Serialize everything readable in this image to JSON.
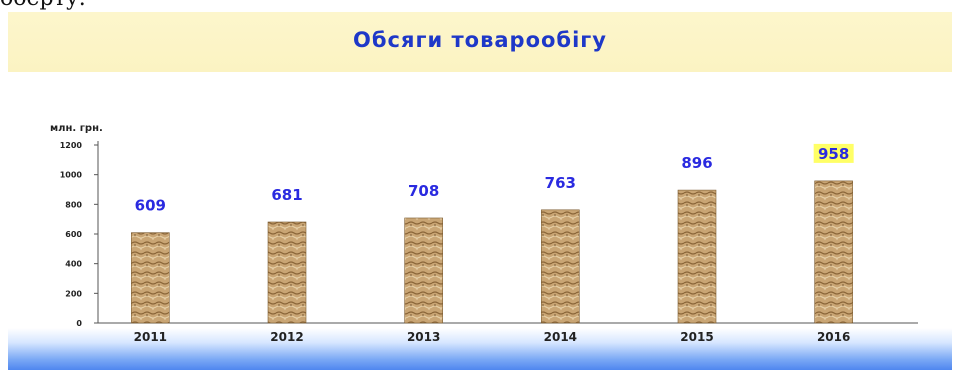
{
  "top_fragment": "оберту.",
  "chart_data": {
    "type": "bar",
    "title": "Обсяги товарообігу",
    "ylabel": "млн. грн.",
    "xlabel": "",
    "categories": [
      "2011",
      "2012",
      "2013",
      "2014",
      "2015",
      "2016"
    ],
    "values": [
      609,
      681,
      708,
      763,
      896,
      958
    ],
    "ylim": [
      0,
      1200
    ],
    "yticks": [
      "0",
      "200",
      "400",
      "600",
      "800",
      "1000",
      "1200"
    ],
    "highlight_value_index": 5,
    "colors": {
      "title": "#1e38c8",
      "value_labels": "#2a2ae0",
      "bar_light": "#d8b98c",
      "bar_dark": "#8a6538",
      "highlight": "#ffff66"
    }
  }
}
